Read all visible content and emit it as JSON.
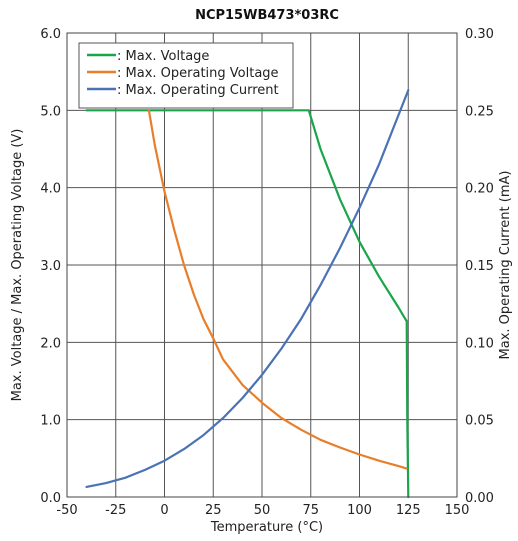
{
  "chart_data": {
    "type": "line",
    "title": "NCP15WB473*03RC",
    "xlabel": "Temperature (°C)",
    "ylabel_left": "Max. Voltage / Max. Operating Voltage (V)",
    "ylabel_right": "Max. Operating Current (mA)",
    "xlim": [
      -50,
      150
    ],
    "ylim_left": [
      0,
      6
    ],
    "ylim_right": [
      0,
      0.3
    ],
    "x_ticks": [
      "-50",
      "-25",
      "0",
      "25",
      "50",
      "75",
      "100",
      "125",
      "150"
    ],
    "y_left_ticks": [
      "0.0",
      "1.0",
      "2.0",
      "3.0",
      "4.0",
      "5.0",
      "6.0"
    ],
    "y_right_ticks": [
      "0.00",
      "0.05",
      "0.10",
      "0.15",
      "0.20",
      "0.25",
      "0.30"
    ],
    "grid": true,
    "legend_position": "top-left",
    "series": [
      {
        "name": ": Max. Voltage",
        "axis": "left",
        "color": "#1aa54b",
        "x": [
          -40,
          -20,
          0,
          20,
          40,
          60,
          72,
          74,
          80,
          90,
          100,
          110,
          120,
          124,
          124.2,
          124.5,
          125
        ],
        "y": [
          5.0,
          5.0,
          5.0,
          5.0,
          5.0,
          5.0,
          5.0,
          5.0,
          4.5,
          3.85,
          3.3,
          2.85,
          2.45,
          2.28,
          2.28,
          1.0,
          0.0
        ]
      },
      {
        "name": ": Max. Operating Voltage",
        "axis": "left",
        "color": "#e87e2a",
        "x": [
          -8,
          -5,
          0,
          5,
          10,
          15,
          20,
          25,
          30,
          40,
          50,
          60,
          70,
          80,
          90,
          100,
          110,
          120,
          124
        ],
        "y": [
          5.0,
          4.55,
          3.95,
          3.45,
          3.0,
          2.62,
          2.3,
          2.05,
          1.78,
          1.45,
          1.22,
          1.02,
          0.87,
          0.74,
          0.64,
          0.55,
          0.47,
          0.4,
          0.37
        ]
      },
      {
        "name": ": Max. Operating Current",
        "axis": "right",
        "color": "#4a72b5",
        "x": [
          -40,
          -30,
          -20,
          -10,
          0,
          10,
          20,
          30,
          40,
          50,
          60,
          70,
          80,
          90,
          100,
          110,
          120,
          125
        ],
        "y": [
          0.0065,
          0.009,
          0.0125,
          0.0175,
          0.0235,
          0.031,
          0.04,
          0.051,
          0.064,
          0.079,
          0.096,
          0.115,
          0.137,
          0.161,
          0.187,
          0.215,
          0.247,
          0.263
        ]
      }
    ]
  }
}
